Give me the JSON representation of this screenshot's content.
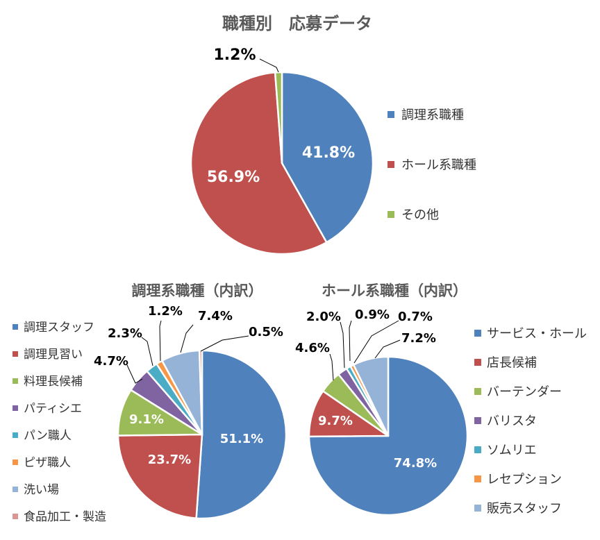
{
  "chart_data": [
    {
      "type": "pie",
      "title": "職種別　応募データ",
      "legend_position": "right",
      "slices": [
        {
          "name": "調理系職種",
          "value": 41.8,
          "label": "41.8%",
          "color": "#4f81bd"
        },
        {
          "name": "ホール系職種",
          "value": 56.9,
          "label": "56.9%",
          "color": "#c0504d"
        },
        {
          "name": "その他",
          "value": 1.2,
          "label": "1.2%",
          "color": "#9bbb59"
        }
      ]
    },
    {
      "type": "pie",
      "title": "調理系職種（内訳）",
      "legend_position": "left",
      "slices": [
        {
          "name": "調理スタッフ",
          "value": 51.1,
          "label": "51.1%",
          "color": "#4f81bd"
        },
        {
          "name": "調理見習い",
          "value": 23.7,
          "label": "23.7%",
          "color": "#c0504d"
        },
        {
          "name": "料理長候補",
          "value": 9.1,
          "label": "9.1%",
          "color": "#9bbb59"
        },
        {
          "name": "パティシエ",
          "value": 4.7,
          "label": "4.7%",
          "color": "#8064a2"
        },
        {
          "name": "パン職人",
          "value": 2.3,
          "label": "2.3%",
          "color": "#4bacc6"
        },
        {
          "name": "ピザ職人",
          "value": 1.2,
          "label": "1.2%",
          "color": "#f79646"
        },
        {
          "name": "洗い場",
          "value": 7.4,
          "label": "7.4%",
          "color": "#95b3d7"
        },
        {
          "name": "食品加工・製造",
          "value": 0.5,
          "label": "0.5%",
          "color": "#d99694"
        }
      ]
    },
    {
      "type": "pie",
      "title": "ホール系職種（内訳）",
      "legend_position": "right",
      "slices": [
        {
          "name": "サービス・ホール",
          "value": 74.8,
          "label": "74.8%",
          "color": "#4f81bd"
        },
        {
          "name": "店長候補",
          "value": 9.7,
          "label": "9.7%",
          "color": "#c0504d"
        },
        {
          "name": "バーテンダー",
          "value": 4.6,
          "label": "4.6%",
          "color": "#9bbb59"
        },
        {
          "name": "バリスタ",
          "value": 2.0,
          "label": "2.0%",
          "color": "#8064a2"
        },
        {
          "name": "ソムリエ",
          "value": 0.9,
          "label": "0.9%",
          "color": "#4bacc6"
        },
        {
          "name": "レセプション",
          "value": 0.7,
          "label": "0.7%",
          "color": "#f79646"
        },
        {
          "name": "販売スタッフ",
          "value": 7.2,
          "label": "7.2%",
          "color": "#95b3d7"
        }
      ]
    }
  ]
}
